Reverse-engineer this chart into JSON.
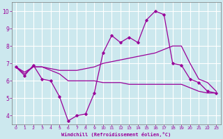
{
  "xlabel": "Windchill (Refroidissement éolien,°C)",
  "background_color": "#cce8ee",
  "grid_color": "#ffffff",
  "line_color": "#990099",
  "x_ticks": [
    0,
    1,
    2,
    3,
    4,
    5,
    6,
    7,
    8,
    9,
    10,
    11,
    12,
    13,
    14,
    15,
    16,
    17,
    18,
    19,
    20,
    21,
    22,
    23
  ],
  "y_ticks": [
    4,
    5,
    6,
    7,
    8,
    9,
    10
  ],
  "ylim": [
    3.5,
    10.5
  ],
  "xlim": [
    -0.5,
    23.5
  ],
  "line1_x": [
    0,
    1,
    2,
    3,
    4,
    5,
    6,
    7,
    8,
    9,
    10,
    11,
    12,
    13,
    14,
    15,
    16,
    17,
    18,
    19,
    20,
    21,
    22,
    23
  ],
  "line1_y": [
    6.8,
    6.3,
    6.9,
    6.1,
    6.0,
    5.1,
    3.7,
    4.0,
    4.1,
    5.3,
    7.6,
    8.6,
    8.2,
    8.5,
    8.2,
    9.5,
    10.0,
    9.8,
    7.0,
    6.9,
    6.1,
    5.9,
    5.4,
    5.3
  ],
  "line2_x": [
    0,
    1,
    2,
    3,
    4,
    5,
    6,
    7,
    8,
    9,
    10,
    11,
    12,
    13,
    14,
    15,
    16,
    17,
    18,
    19,
    20,
    21,
    22,
    23
  ],
  "line2_y": [
    6.8,
    6.5,
    6.8,
    6.8,
    6.7,
    6.6,
    6.6,
    6.6,
    6.7,
    6.8,
    7.0,
    7.1,
    7.2,
    7.3,
    7.4,
    7.5,
    7.6,
    7.8,
    8.0,
    8.0,
    7.0,
    6.1,
    5.9,
    5.4
  ],
  "line3_x": [
    0,
    1,
    2,
    3,
    4,
    5,
    6,
    7,
    8,
    9,
    10,
    11,
    12,
    13,
    14,
    15,
    16,
    17,
    18,
    19,
    20,
    21,
    22,
    23
  ],
  "line3_y": [
    6.8,
    6.4,
    6.8,
    6.8,
    6.6,
    6.4,
    6.0,
    6.0,
    6.0,
    6.0,
    5.9,
    5.9,
    5.9,
    5.8,
    5.8,
    5.8,
    5.8,
    5.8,
    5.8,
    5.8,
    5.6,
    5.4,
    5.3,
    5.3
  ]
}
